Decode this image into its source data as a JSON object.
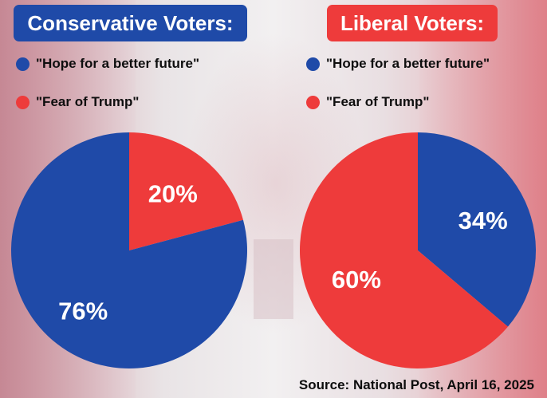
{
  "chart_data": [
    {
      "type": "pie",
      "title": "Conservative Voters:",
      "legend": [
        {
          "label": "\"Hope for a better future\"",
          "color": "#1f4aa8"
        },
        {
          "label": "\"Fear of Trump\"",
          "color": "#ee3b3b"
        }
      ],
      "slices": [
        {
          "label": "\"Fear of Trump\"",
          "value": 20,
          "text": "20%",
          "color": "#ee3b3b"
        },
        {
          "label": "\"Hope for a better future\"",
          "value": 76,
          "text": "76%",
          "color": "#1f4aa8"
        }
      ]
    },
    {
      "type": "pie",
      "title": "Liberal Voters:",
      "legend": [
        {
          "label": "\"Hope for a better future\"",
          "color": "#1f4aa8"
        },
        {
          "label": "\"Fear of Trump\"",
          "color": "#ee3b3b"
        }
      ],
      "slices": [
        {
          "label": "\"Hope for a better future\"",
          "value": 34,
          "text": "34%",
          "color": "#1f4aa8"
        },
        {
          "label": "\"Fear of Trump\"",
          "value": 60,
          "text": "60%",
          "color": "#ee3b3b"
        }
      ]
    }
  ],
  "source": "Source: National Post, April 16, 2025"
}
